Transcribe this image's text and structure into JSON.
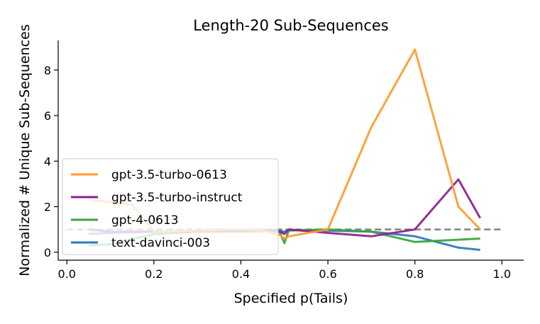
{
  "chart_data": {
    "type": "line",
    "title": "Length-20 Sub-Sequences",
    "xlabel": "Specified p(Tails)",
    "ylabel": "Normalized # Unique Sub-Sequences",
    "xlim": [
      -0.02,
      1.05
    ],
    "ylim": [
      -0.35,
      9.3
    ],
    "xticks": [
      0.0,
      0.2,
      0.4,
      0.6,
      0.8,
      1.0
    ],
    "xtick_labels": [
      "0.0",
      "0.2",
      "0.4",
      "0.6",
      "0.8",
      "1.0"
    ],
    "yticks": [
      0,
      2,
      4,
      6,
      8
    ],
    "ytick_labels": [
      "0",
      "2",
      "4",
      "6",
      "8"
    ],
    "grid": false,
    "legend_position": "lower-left",
    "reference_line": {
      "y": 1.0,
      "x_range": [
        0.0,
        1.0
      ],
      "style": "dashed",
      "color": "#808080"
    },
    "series": [
      {
        "name": "gpt-3.5-turbo-0613",
        "color": "#ff9a2e",
        "x": [
          0.05,
          0.1,
          0.15,
          0.2,
          0.3,
          0.4,
          0.45,
          0.49,
          0.5,
          0.51,
          0.6,
          0.7,
          0.8,
          0.9,
          0.95
        ],
        "y": [
          2.3,
          2.2,
          2.1,
          0.9,
          0.95,
          1.0,
          0.95,
          0.75,
          0.6,
          0.7,
          1.0,
          5.5,
          8.9,
          2.0,
          1.0
        ]
      },
      {
        "name": "gpt-3.5-turbo-instruct",
        "color": "#8e1e8e",
        "x": [
          0.05,
          0.1,
          0.2,
          0.3,
          0.4,
          0.48,
          0.49,
          0.5,
          0.51,
          0.6,
          0.7,
          0.8,
          0.9,
          0.95
        ],
        "y": [
          1.0,
          0.9,
          0.9,
          0.92,
          0.95,
          0.95,
          0.9,
          0.8,
          1.0,
          0.85,
          0.7,
          1.0,
          3.2,
          1.5
        ]
      },
      {
        "name": "gpt-4-0613",
        "color": "#3aa43a",
        "x": [
          0.05,
          0.1,
          0.2,
          0.3,
          0.4,
          0.48,
          0.49,
          0.5,
          0.51,
          0.6,
          0.7,
          0.8,
          0.9,
          0.95
        ],
        "y": [
          0.3,
          0.35,
          0.8,
          0.9,
          0.9,
          0.92,
          0.85,
          0.4,
          0.95,
          1.0,
          0.9,
          0.45,
          0.55,
          0.6
        ]
      },
      {
        "name": "text-davinci-003",
        "color": "#2b78b8",
        "x": [
          0.05,
          0.1,
          0.2,
          0.3,
          0.4,
          0.48,
          0.49,
          0.5,
          0.51,
          0.6,
          0.7,
          0.8,
          0.9,
          0.95
        ],
        "y": [
          0.8,
          0.85,
          0.9,
          0.95,
          0.97,
          0.97,
          0.95,
          0.9,
          0.97,
          0.95,
          0.9,
          0.7,
          0.2,
          0.1
        ]
      }
    ]
  }
}
